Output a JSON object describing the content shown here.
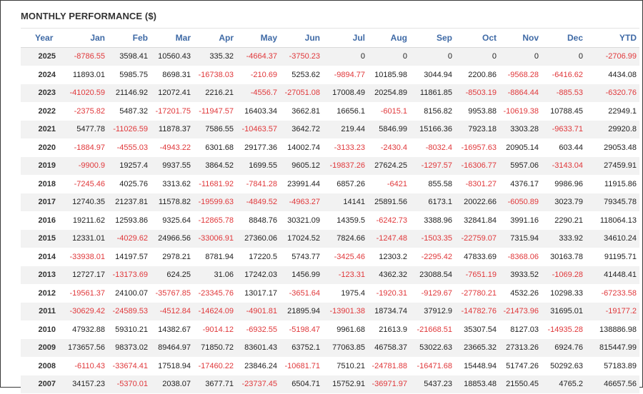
{
  "title": "MONTHLY PERFORMANCE ($)",
  "colors": {
    "header_text": "#3f6aa6",
    "negative": "#e0383b",
    "stripe": "#f2f2f2"
  },
  "columns": [
    "Year",
    "Jan",
    "Feb",
    "Mar",
    "Apr",
    "May",
    "Jun",
    "Jul",
    "Aug",
    "Sep",
    "Oct",
    "Nov",
    "Dec",
    "YTD"
  ],
  "rows": [
    [
      "2025",
      "-8786.55",
      "3598.41",
      "10560.43",
      "335.32",
      "-4664.37",
      "-3750.23",
      "0",
      "0",
      "0",
      "0",
      "0",
      "0",
      "-2706.99"
    ],
    [
      "2024",
      "11893.01",
      "5985.75",
      "8698.31",
      "-16738.03",
      "-210.69",
      "5253.62",
      "-9894.77",
      "10185.98",
      "3044.94",
      "2200.86",
      "-9568.28",
      "-6416.62",
      "4434.08"
    ],
    [
      "2023",
      "-41020.59",
      "21146.92",
      "12072.41",
      "2216.21",
      "-4556.7",
      "-27051.08",
      "17008.49",
      "20254.89",
      "11861.85",
      "-8503.19",
      "-8864.44",
      "-885.53",
      "-6320.76"
    ],
    [
      "2022",
      "-2375.82",
      "5487.32",
      "-17201.75",
      "-11947.57",
      "16403.34",
      "3662.81",
      "16656.1",
      "-6015.1",
      "8156.82",
      "9953.88",
      "-10619.38",
      "10788.45",
      "22949.1"
    ],
    [
      "2021",
      "5477.78",
      "-11026.59",
      "11878.37",
      "7586.55",
      "-10463.57",
      "3642.72",
      "219.44",
      "5846.99",
      "15166.36",
      "7923.18",
      "3303.28",
      "-9633.71",
      "29920.8"
    ],
    [
      "2020",
      "-1884.97",
      "-4555.03",
      "-4943.22",
      "6301.68",
      "29177.36",
      "14002.74",
      "-3133.23",
      "-2430.4",
      "-8032.4",
      "-16957.63",
      "20905.14",
      "603.44",
      "29053.48"
    ],
    [
      "2019",
      "-9900.9",
      "19257.4",
      "9937.55",
      "3864.52",
      "1699.55",
      "9605.12",
      "-19837.26",
      "27624.25",
      "-1297.57",
      "-16306.77",
      "5957.06",
      "-3143.04",
      "27459.91"
    ],
    [
      "2018",
      "-7245.46",
      "4025.76",
      "3313.62",
      "-11681.92",
      "-7841.28",
      "23991.44",
      "6857.26",
      "-6421",
      "855.58",
      "-8301.27",
      "4376.17",
      "9986.96",
      "11915.86"
    ],
    [
      "2017",
      "12740.35",
      "21237.81",
      "11578.82",
      "-19599.63",
      "-4849.52",
      "-4963.27",
      "14141",
      "25891.56",
      "6173.1",
      "20022.66",
      "-6050.89",
      "3023.79",
      "79345.78"
    ],
    [
      "2016",
      "19211.62",
      "12593.86",
      "9325.64",
      "-12865.78",
      "8848.76",
      "30321.09",
      "14359.5",
      "-6242.73",
      "3388.96",
      "32841.84",
      "3991.16",
      "2290.21",
      "118064.13"
    ],
    [
      "2015",
      "12331.01",
      "-4029.62",
      "24966.56",
      "-33006.91",
      "27360.06",
      "17024.52",
      "7824.66",
      "-1247.48",
      "-1503.35",
      "-22759.07",
      "7315.94",
      "333.92",
      "34610.24"
    ],
    [
      "2014",
      "-33938.01",
      "14197.57",
      "2978.21",
      "8781.94",
      "17220.5",
      "5743.77",
      "-3425.46",
      "12303.2",
      "-2295.42",
      "47833.69",
      "-8368.06",
      "30163.78",
      "91195.71"
    ],
    [
      "2013",
      "12727.17",
      "-13173.69",
      "624.25",
      "31.06",
      "17242.03",
      "1456.99",
      "-123.31",
      "4362.32",
      "23088.54",
      "-7651.19",
      "3933.52",
      "-1069.28",
      "41448.41"
    ],
    [
      "2012",
      "-19561.37",
      "24100.07",
      "-35767.85",
      "-23345.76",
      "13017.17",
      "-3651.64",
      "1975.4",
      "-1920.31",
      "-9129.67",
      "-27780.21",
      "4532.26",
      "10298.33",
      "-67233.58"
    ],
    [
      "2011",
      "-30629.42",
      "-24589.53",
      "-4512.84",
      "-14624.09",
      "-4901.81",
      "21895.94",
      "-13901.38",
      "18734.74",
      "37912.9",
      "-14782.76",
      "-21473.96",
      "31695.01",
      "-19177.2"
    ],
    [
      "2010",
      "47932.88",
      "59310.21",
      "14382.67",
      "-9014.12",
      "-6932.55",
      "-5198.47",
      "9961.68",
      "21613.9",
      "-21668.51",
      "35307.54",
      "8127.03",
      "-14935.28",
      "138886.98"
    ],
    [
      "2009",
      "173657.56",
      "98373.02",
      "89464.97",
      "71850.72",
      "83601.43",
      "63752.1",
      "77063.85",
      "46758.37",
      "53022.63",
      "23665.32",
      "27313.26",
      "6924.76",
      "815447.99"
    ],
    [
      "2008",
      "-6110.43",
      "-33674.41",
      "17518.94",
      "-17460.22",
      "23846.24",
      "-10681.71",
      "7510.21",
      "-24781.88",
      "-16471.68",
      "15448.94",
      "51747.26",
      "50292.63",
      "57183.89"
    ],
    [
      "2007",
      "34157.23",
      "-5370.01",
      "2038.07",
      "3677.71",
      "-23737.45",
      "6504.71",
      "15752.91",
      "-36971.97",
      "5437.23",
      "18853.48",
      "21550.45",
      "4765.2",
      "46657.56"
    ]
  ]
}
